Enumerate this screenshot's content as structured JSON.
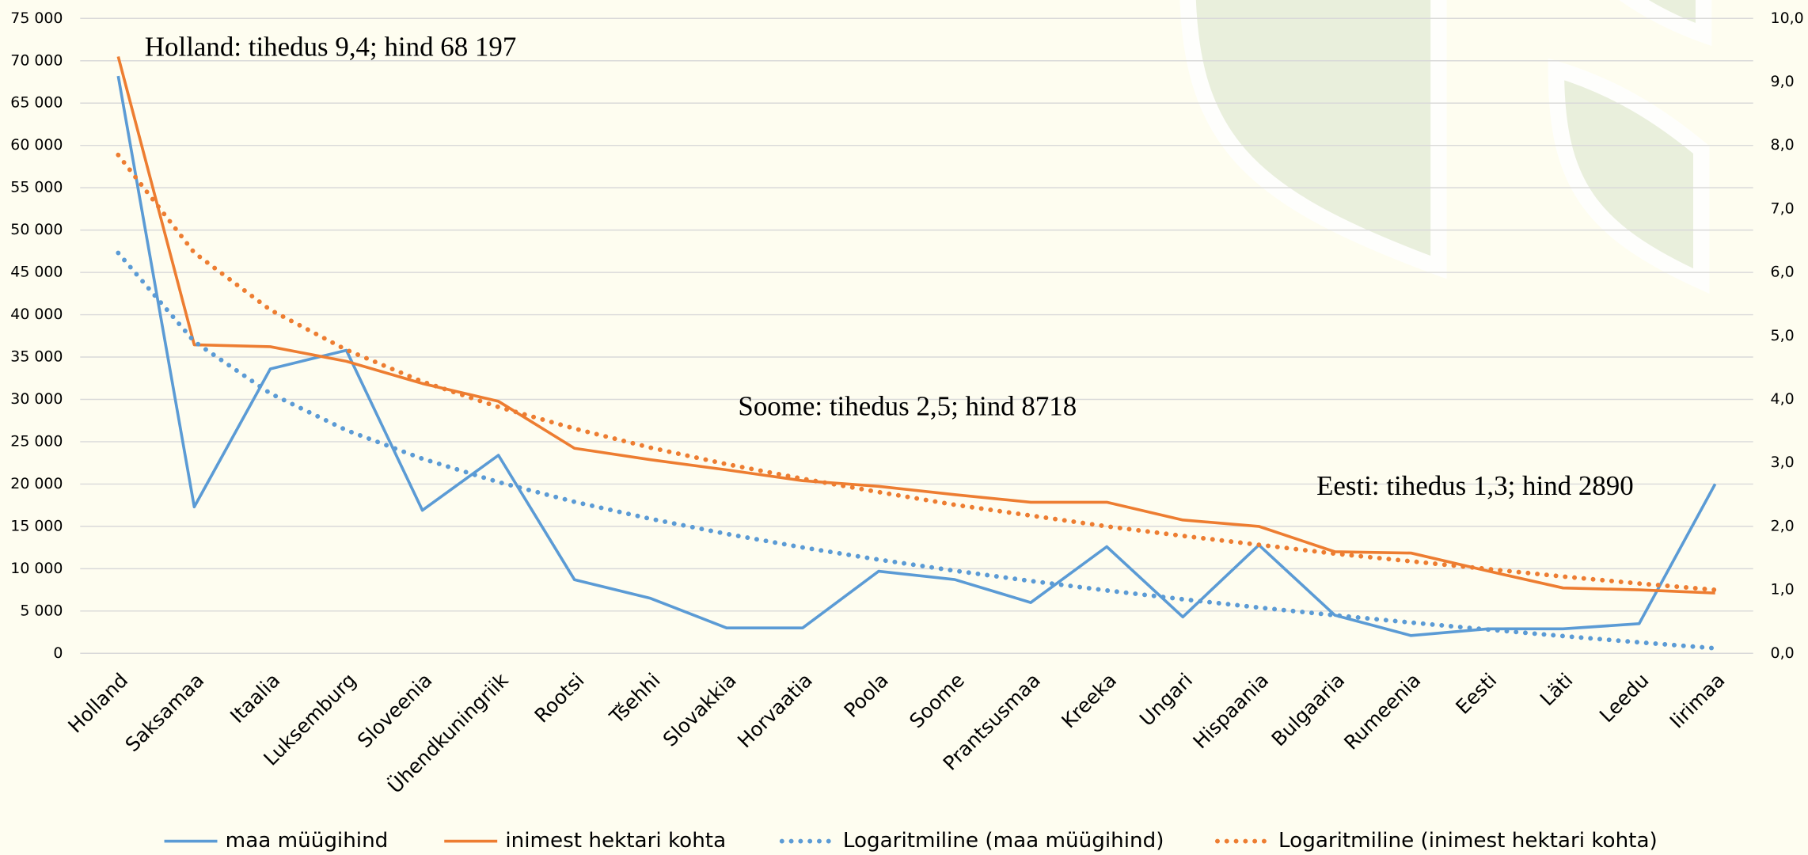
{
  "chart_data": {
    "type": "line",
    "categories": [
      "Holland",
      "Saksamaa",
      "Itaalia",
      "Luksemburg",
      "Sloveenia",
      "Ühendkuningriik",
      "Rootsi",
      "Tšehhi",
      "Slovakkia",
      "Horvaatia",
      "Poola",
      "Soome",
      "Prantsusmaa",
      "Kreeka",
      "Ungari",
      "Hispaania",
      "Bulgaaria",
      "Rumeenia",
      "Eesti",
      "Läti",
      "Leedu",
      "Iirimaa"
    ],
    "series": [
      {
        "name": "maa müügihind",
        "color": "#5b9bd5",
        "style": "solid",
        "values": [
          68197,
          17300,
          33600,
          35800,
          16900,
          23400,
          8700,
          6500,
          3000,
          3000,
          9700,
          8718,
          6000,
          12600,
          4300,
          12800,
          4500,
          2100,
          2890,
          2900,
          3500,
          20000
        ]
      },
      {
        "name": "inimest hektari kohta",
        "color": "#ed7d31",
        "style": "solid",
        "axis": "y2",
        "values": [
          9.4,
          4.86,
          4.83,
          4.6,
          4.25,
          3.97,
          3.23,
          3.05,
          2.89,
          2.72,
          2.63,
          2.5,
          2.38,
          2.38,
          2.1,
          2.0,
          1.6,
          1.58,
          1.3,
          1.03,
          1.0,
          0.95
        ]
      },
      {
        "name": "Logaritmiline (maa müügihind)",
        "color": "#5b9bd5",
        "style": "dotted",
        "values": [
          47300,
          36830,
          30700,
          26360,
          22990,
          20230,
          17900,
          15890,
          14110,
          12510,
          11070,
          9760,
          8550,
          7430,
          6390,
          5410,
          4500,
          3640,
          2820,
          2040,
          1300,
          600
        ]
      },
      {
        "name": "Logaritmiline (inimest hektari kohta)",
        "color": "#ed7d31",
        "style": "dotted",
        "axis": "y2",
        "values": [
          7.85,
          6.31,
          5.41,
          4.78,
          4.28,
          3.88,
          3.54,
          3.24,
          2.98,
          2.75,
          2.54,
          2.34,
          2.17,
          2.0,
          1.85,
          1.71,
          1.57,
          1.45,
          1.33,
          1.21,
          1.1,
          1.0
        ]
      }
    ],
    "ylim": [
      0,
      75000
    ],
    "yticks": [
      {
        "value": 0,
        "label": "0"
      },
      {
        "value": 5000,
        "label": "5 000"
      },
      {
        "value": 10000,
        "label": "10 000"
      },
      {
        "value": 15000,
        "label": "15 000"
      },
      {
        "value": 20000,
        "label": "20 000"
      },
      {
        "value": 25000,
        "label": "25 000"
      },
      {
        "value": 30000,
        "label": "30 000"
      },
      {
        "value": 35000,
        "label": "35 000"
      },
      {
        "value": 40000,
        "label": "40 000"
      },
      {
        "value": 45000,
        "label": "45 000"
      },
      {
        "value": 50000,
        "label": "50 000"
      },
      {
        "value": 55000,
        "label": "55 000"
      },
      {
        "value": 60000,
        "label": "60 000"
      },
      {
        "value": 65000,
        "label": "65 000"
      },
      {
        "value": 70000,
        "label": "70 000"
      },
      {
        "value": 75000,
        "label": "75 000"
      }
    ],
    "y2lim": [
      0,
      10
    ],
    "y2ticks": [
      {
        "value": 0,
        "label": "0,0"
      },
      {
        "value": 1,
        "label": "1,0"
      },
      {
        "value": 2,
        "label": "2,0"
      },
      {
        "value": 3,
        "label": "3,0"
      },
      {
        "value": 4,
        "label": "4,0"
      },
      {
        "value": 5,
        "label": "5,0"
      },
      {
        "value": 6,
        "label": "6,0"
      },
      {
        "value": 7,
        "label": "7,0"
      },
      {
        "value": 8,
        "label": "8,0"
      },
      {
        "value": 9,
        "label": "9,0"
      },
      {
        "value": 10,
        "label": "10,0"
      }
    ],
    "grid": true,
    "legend": "bottom",
    "annotations": [
      "Holland: tihedus 9,4; hind 68 197",
      "Soome: tihedus 2,5; hind 8718",
      "Eesti: tihedus 1,3; hind 2890"
    ]
  }
}
